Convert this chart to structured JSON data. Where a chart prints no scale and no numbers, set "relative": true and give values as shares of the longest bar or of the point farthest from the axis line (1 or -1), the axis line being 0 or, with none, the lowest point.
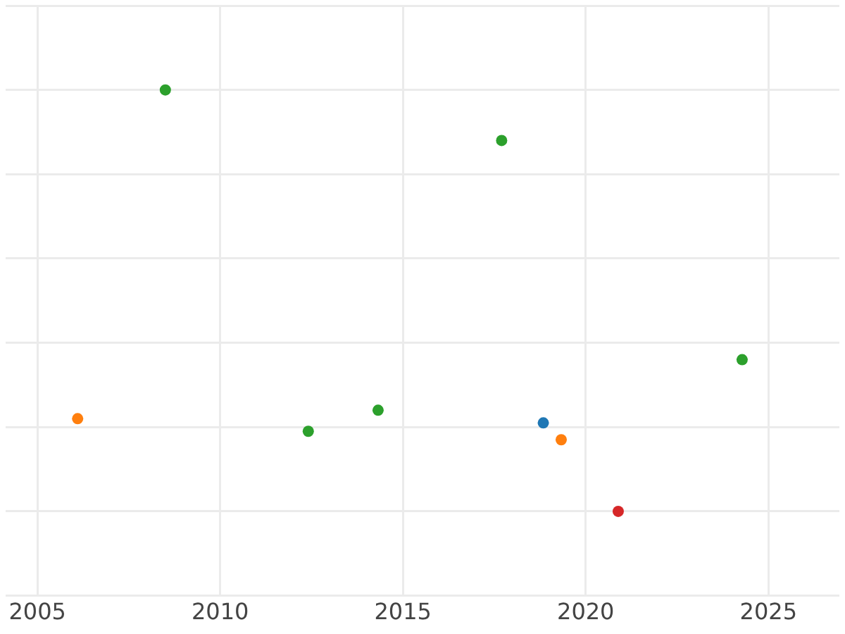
{
  "chart_data": {
    "type": "scatter",
    "relative": true,
    "xlim": [
      2004.13,
      2026.94
    ],
    "xticks": [
      2005,
      2010,
      2015,
      2020,
      2025
    ],
    "grid": true,
    "legend": false,
    "marker": "circle",
    "series": [
      {
        "color": "#ff7f0e",
        "x": [
          2006.1,
          2019.33
        ],
        "values": [
          0.22,
          0.17
        ]
      },
      {
        "color": "#2ca02c",
        "x": [
          2008.5,
          2012.41,
          2014.32,
          2017.7,
          2024.28
        ],
        "values": [
          1,
          0.19,
          0.24,
          0.88,
          0.36
        ]
      },
      {
        "color": "#1f77b4",
        "x": [
          2018.84
        ],
        "values": [
          0.21
        ]
      },
      {
        "color": "#d62728",
        "x": [
          2020.89
        ],
        "values": [
          0
        ]
      }
    ]
  }
}
